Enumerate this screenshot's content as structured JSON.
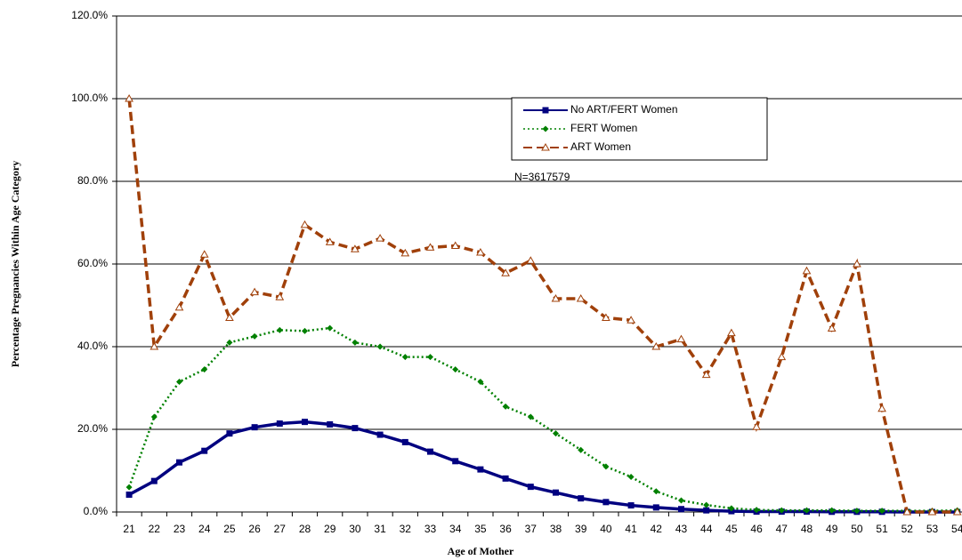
{
  "chart_data": {
    "type": "line",
    "x_label": "Age of Mother",
    "y_label": "Percentage Pregnancies Within Age Category",
    "annotation": "N=3617579",
    "categories": [
      "21",
      "22",
      "23",
      "24",
      "25",
      "26",
      "27",
      "28",
      "29",
      "30",
      "31",
      "32",
      "33",
      "34",
      "35",
      "36",
      "37",
      "38",
      "39",
      "40",
      "41",
      "42",
      "43",
      "44",
      "45",
      "46",
      "47",
      "48",
      "49",
      "50",
      "51",
      "52",
      "53",
      "54"
    ],
    "ylim": [
      0,
      120
    ],
    "yticks": [
      {
        "value": 0,
        "label": "0.0%"
      },
      {
        "value": 20,
        "label": "20.0%"
      },
      {
        "value": 40,
        "label": "40.0%"
      },
      {
        "value": 60,
        "label": "60.0%"
      },
      {
        "value": 80,
        "label": "80.0%"
      },
      {
        "value": 100,
        "label": "100.0%"
      },
      {
        "value": 120,
        "label": "120.0%"
      }
    ],
    "grid": true,
    "series": [
      {
        "name": "No ART/FERT  Women",
        "color": "#000080",
        "line_style": "solid",
        "marker": "square",
        "values": [
          4.2,
          7.5,
          12,
          14.8,
          19,
          20.5,
          21.4,
          21.8,
          21.2,
          20.3,
          18.7,
          16.9,
          14.6,
          12.3,
          10.3,
          8.1,
          6.1,
          4.7,
          3.3,
          2.4,
          1.6,
          1.1,
          0.7,
          0.4,
          0.2,
          0.1,
          0.1,
          0.1,
          0.05,
          0.05,
          0.05,
          0,
          0,
          0
        ]
      },
      {
        "name": "FERT Women",
        "color": "#008000",
        "line_style": "dotted",
        "marker": "diamond",
        "values": [
          6,
          23,
          31.5,
          34.5,
          41,
          42.5,
          44,
          43.8,
          44.5,
          41,
          40,
          37.5,
          37.5,
          34.5,
          31.5,
          25.5,
          23,
          19,
          15,
          11,
          8.5,
          5,
          2.8,
          1.7,
          0.9,
          0.5,
          0.4,
          0.4,
          0.4,
          0.3,
          0.3,
          0.3,
          0.3,
          0.4
        ]
      },
      {
        "name": "ART Women",
        "color": "#a0400a",
        "line_style": "dashed",
        "marker": "triangle",
        "values": [
          100,
          40,
          49.5,
          62.3,
          47,
          53.2,
          52,
          69.5,
          65.3,
          63.6,
          66.2,
          62.6,
          64,
          64.4,
          62.8,
          57.8,
          60.8,
          51.6,
          51.6,
          47,
          46.4,
          40,
          41.8,
          33.2,
          43.3,
          20.6,
          37.5,
          58.3,
          44.4,
          60,
          25,
          0,
          0,
          0
        ]
      }
    ]
  }
}
